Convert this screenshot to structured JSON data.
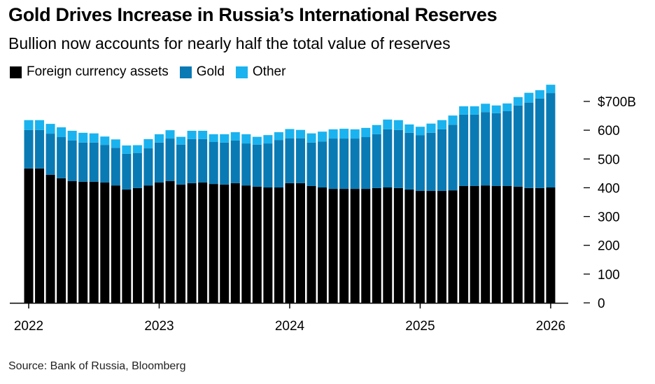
{
  "chart_data": {
    "type": "bar",
    "stacked": true,
    "title": "Gold Drives Increase in Russia’s International Reserves",
    "subtitle": "Bullion now accounts for nearly half the total value of reserves",
    "source": "Source: Bank of Russia, Bloomberg",
    "xlabel": "",
    "ylabel": "",
    "ylim": [
      0,
      700
    ],
    "y_ticks": [
      0,
      100,
      200,
      300,
      400,
      500,
      600,
      700
    ],
    "y_tick_labels": [
      "0",
      "100",
      "200",
      "300",
      "400",
      "500",
      "600",
      "$700B"
    ],
    "x_tick_labels": [
      "2022",
      "2023",
      "2024",
      "2025",
      "2026"
    ],
    "x_tick_indices": [
      0,
      12,
      24,
      36,
      48
    ],
    "legend_position": "top-left",
    "grid": false,
    "categories": [
      "Jan 2022",
      "Feb 2022",
      "Mar 2022",
      "Apr 2022",
      "May 2022",
      "Jun 2022",
      "Jul 2022",
      "Aug 2022",
      "Sep 2022",
      "Oct 2022",
      "Nov 2022",
      "Dec 2022",
      "Jan 2023",
      "Feb 2023",
      "Mar 2023",
      "Apr 2023",
      "May 2023",
      "Jun 2023",
      "Jul 2023",
      "Aug 2023",
      "Sep 2023",
      "Oct 2023",
      "Nov 2023",
      "Dec 2023",
      "Jan 2024",
      "Feb 2024",
      "Mar 2024",
      "Apr 2024",
      "May 2024",
      "Jun 2024",
      "Jul 2024",
      "Aug 2024",
      "Sep 2024",
      "Oct 2024",
      "Nov 2024",
      "Dec 2024",
      "Jan 2025",
      "Feb 2025",
      "Mar 2025",
      "Apr 2025",
      "May 2025",
      "Jun 2025",
      "Jul 2025",
      "Aug 2025",
      "Sep 2025",
      "Oct 2025",
      "Nov 2025",
      "Dec 2025",
      "Jan 2026"
    ],
    "series": [
      {
        "name": "Foreign currency assets",
        "color": "#000000",
        "values": [
          467,
          467,
          445,
          433,
          423,
          421,
          421,
          418,
          408,
          394,
          399,
          408,
          418,
          423,
          411,
          416,
          418,
          413,
          411,
          416,
          408,
          404,
          401,
          401,
          416,
          416,
          406,
          401,
          396,
          396,
          396,
          396,
          399,
          401,
          399,
          394,
          389,
          389,
          389,
          391,
          406,
          406,
          408,
          406,
          406,
          404,
          399,
          399,
          401
        ]
      },
      {
        "name": "Gold",
        "color": "#0a7ab4",
        "values": [
          134,
          134,
          143,
          143,
          141,
          136,
          136,
          131,
          131,
          124,
          122,
          129,
          139,
          148,
          139,
          153,
          151,
          146,
          146,
          148,
          146,
          146,
          153,
          165,
          156,
          156,
          151,
          160,
          175,
          175,
          175,
          180,
          187,
          202,
          202,
          197,
          194,
          202,
          214,
          228,
          248,
          248,
          255,
          253,
          260,
          282,
          297,
          311,
          328
        ]
      },
      {
        "name": "Other",
        "color": "#1ab3ef",
        "values": [
          34,
          34,
          34,
          34,
          34,
          34,
          32,
          29,
          29,
          29,
          27,
          32,
          29,
          29,
          27,
          29,
          29,
          27,
          29,
          29,
          32,
          27,
          29,
          27,
          32,
          29,
          32,
          34,
          32,
          34,
          32,
          32,
          32,
          34,
          34,
          29,
          29,
          32,
          32,
          32,
          29,
          29,
          29,
          27,
          27,
          29,
          34,
          29,
          29
        ]
      }
    ]
  }
}
